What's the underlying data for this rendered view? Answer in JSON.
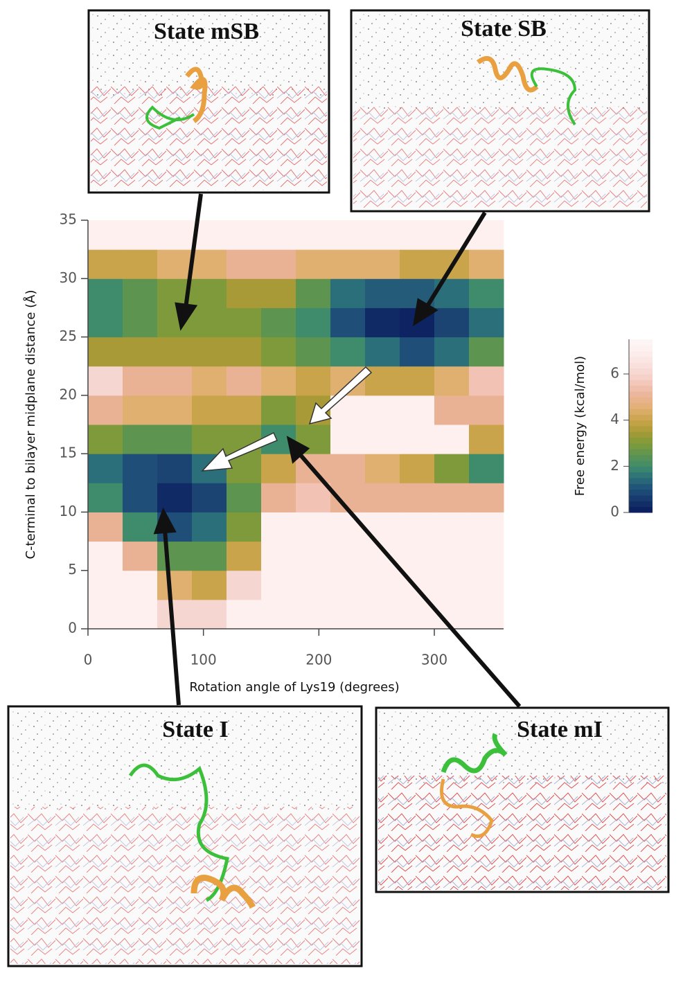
{
  "chart_data": {
    "type": "contour",
    "xlabel": "Rotation angle of Lys19 (degrees)",
    "ylabel": "C-terminal to bilayer midplane distance (Å)",
    "xlim": [
      0,
      360
    ],
    "ylim": [
      0,
      35
    ],
    "xticks": [
      0,
      100,
      200,
      300
    ],
    "yticks": [
      0,
      5,
      10,
      15,
      20,
      25,
      30,
      35
    ],
    "x": [
      15,
      45,
      75,
      105,
      135,
      165,
      195,
      225,
      255,
      285,
      315,
      345
    ],
    "y": [
      1.25,
      3.75,
      6.25,
      8.75,
      11.25,
      13.75,
      16.25,
      18.75,
      21.25,
      23.75,
      26.25,
      28.75,
      31.25,
      33.75
    ],
    "z": [
      [
        7,
        7,
        6,
        6,
        7,
        7,
        7,
        7,
        7,
        7,
        7,
        7
      ],
      [
        7,
        7,
        4.5,
        4,
        6,
        7,
        7,
        7,
        7,
        7,
        7,
        7
      ],
      [
        7,
        5,
        2.5,
        2.5,
        4,
        7,
        7,
        7,
        7,
        7,
        7,
        7
      ],
      [
        5,
        2,
        1,
        1.5,
        3,
        7,
        7,
        7,
        7,
        7,
        7,
        7
      ],
      [
        2,
        1,
        0.3,
        0.8,
        2.5,
        5,
        5.5,
        5,
        5,
        5,
        5,
        5
      ],
      [
        1.5,
        1,
        0.8,
        1.5,
        3,
        4,
        5,
        5,
        4.5,
        4,
        3,
        2
      ],
      [
        3,
        2.5,
        2.5,
        3,
        3,
        2,
        3,
        7,
        7,
        7,
        7,
        4
      ],
      [
        5,
        4.5,
        4.5,
        4,
        4,
        3,
        3.5,
        7,
        7,
        7,
        5,
        5
      ],
      [
        6,
        5,
        5,
        4.5,
        5,
        4.5,
        4,
        4.5,
        4,
        4,
        4.5,
        5.5
      ],
      [
        3.5,
        3.5,
        3.5,
        3.5,
        3.5,
        3,
        2.5,
        2,
        1.5,
        1,
        1.5,
        2.5
      ],
      [
        2,
        2.5,
        3,
        3,
        3,
        2.5,
        2,
        1,
        0.3,
        0.2,
        0.8,
        1.5
      ],
      [
        2,
        2.5,
        3,
        3,
        3.5,
        3.5,
        2.5,
        1.5,
        1.2,
        1.2,
        1.5,
        2
      ],
      [
        4,
        4,
        4.5,
        4.5,
        5,
        5,
        4.5,
        4.5,
        4.5,
        4,
        4,
        4.5
      ],
      [
        7,
        7,
        7,
        7,
        7,
        7,
        7,
        7,
        7,
        7,
        7,
        7
      ]
    ],
    "colorbar": {
      "label": "Free energy (kcal/mol)",
      "lim": [
        0,
        7.5
      ],
      "ticks": [
        0,
        2,
        4,
        6
      ]
    },
    "insets": [
      {
        "title": "State mSB"
      },
      {
        "title": "State SB"
      },
      {
        "title": "State I"
      },
      {
        "title": "State mI"
      }
    ]
  }
}
